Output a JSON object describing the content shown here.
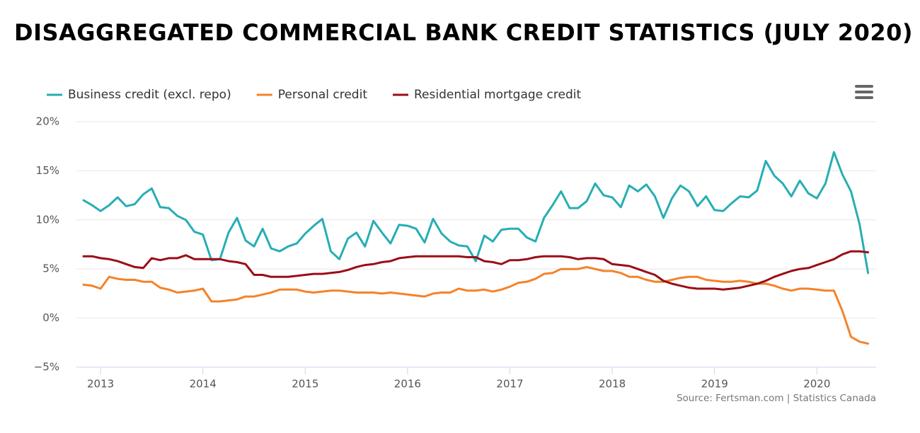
{
  "chart_data": {
    "type": "line",
    "title": "DISAGGREGATED COMMERCIAL BANK CREDIT STATISTICS (JULY 2020)",
    "source": "Source: Fertsman.com | Statistics Canada",
    "categories": [
      null,
      null,
      "2013",
      null,
      null,
      null,
      null,
      null,
      null,
      null,
      null,
      null,
      null,
      null,
      "2014",
      null,
      null,
      null,
      null,
      null,
      null,
      null,
      null,
      null,
      null,
      null,
      "2015",
      null,
      null,
      null,
      null,
      null,
      null,
      null,
      null,
      null,
      null,
      null,
      "2016",
      null,
      null,
      null,
      null,
      null,
      null,
      null,
      null,
      null,
      null,
      null,
      "2017",
      null,
      null,
      null,
      null,
      null,
      null,
      null,
      null,
      null,
      null,
      null,
      "2018",
      null,
      null,
      null,
      null,
      null,
      null,
      null,
      null,
      null,
      null,
      null,
      "2019",
      null,
      null,
      null,
      null,
      null,
      null,
      null,
      null,
      null,
      null,
      null,
      "2020",
      null,
      null,
      null,
      null,
      null,
      null
    ],
    "series": [
      {
        "name": "Business credit (excl. repo)",
        "color": "#26aeb4",
        "values": [
          12.0,
          11.5,
          10.9,
          11.5,
          12.3,
          11.4,
          11.6,
          12.6,
          13.2,
          11.3,
          11.2,
          10.4,
          10.0,
          8.8,
          8.5,
          5.9,
          6.0,
          8.7,
          10.2,
          7.9,
          7.3,
          9.1,
          7.1,
          6.8,
          7.3,
          7.6,
          8.6,
          9.4,
          10.1,
          6.8,
          6.0,
          8.1,
          8.7,
          7.3,
          9.9,
          8.7,
          7.6,
          9.5,
          9.4,
          9.1,
          7.7,
          10.1,
          8.6,
          7.8,
          7.4,
          7.3,
          5.8,
          8.4,
          7.8,
          9.0,
          9.1,
          9.1,
          8.2,
          7.8,
          10.2,
          11.5,
          12.9,
          11.2,
          11.2,
          11.9,
          13.7,
          12.5,
          12.3,
          11.3,
          13.5,
          12.9,
          13.6,
          12.4,
          10.2,
          12.2,
          13.5,
          12.9,
          11.4,
          12.4,
          11.0,
          10.9,
          11.7,
          12.4,
          12.3,
          13.0,
          16.0,
          14.5,
          13.7,
          12.4,
          14.0,
          12.7,
          12.2,
          13.7,
          16.9,
          14.6,
          12.9,
          9.6,
          4.6
        ]
      },
      {
        "name": "Personal credit",
        "color": "#f5822a",
        "values": [
          3.4,
          3.3,
          3.0,
          4.2,
          4.0,
          3.9,
          3.9,
          3.7,
          3.7,
          3.1,
          2.9,
          2.6,
          2.7,
          2.8,
          3.0,
          1.7,
          1.7,
          1.8,
          1.9,
          2.2,
          2.2,
          2.4,
          2.6,
          2.9,
          2.9,
          2.9,
          2.7,
          2.6,
          2.7,
          2.8,
          2.8,
          2.7,
          2.6,
          2.6,
          2.6,
          2.5,
          2.6,
          2.5,
          2.4,
          2.3,
          2.2,
          2.5,
          2.6,
          2.6,
          3.0,
          2.8,
          2.8,
          2.9,
          2.7,
          2.9,
          3.2,
          3.6,
          3.7,
          4.0,
          4.5,
          4.6,
          5.0,
          5.0,
          5.0,
          5.2,
          5.0,
          4.8,
          4.8,
          4.6,
          4.2,
          4.2,
          3.9,
          3.7,
          3.7,
          3.9,
          4.1,
          4.2,
          4.2,
          3.9,
          3.8,
          3.7,
          3.7,
          3.8,
          3.7,
          3.5,
          3.5,
          3.3,
          3.0,
          2.8,
          3.0,
          3.0,
          2.9,
          2.8,
          2.8,
          0.7,
          -1.9,
          -2.4,
          -2.6
        ]
      },
      {
        "name": "Residential mortgage credit",
        "color": "#9b0e16",
        "values": [
          6.3,
          6.3,
          6.1,
          6.0,
          5.8,
          5.5,
          5.2,
          5.1,
          6.1,
          5.9,
          6.1,
          6.1,
          6.4,
          6.0,
          6.0,
          6.0,
          6.0,
          5.8,
          5.7,
          5.5,
          4.4,
          4.4,
          4.2,
          4.2,
          4.2,
          4.3,
          4.4,
          4.5,
          4.5,
          4.6,
          4.7,
          4.9,
          5.2,
          5.4,
          5.5,
          5.7,
          5.8,
          6.1,
          6.2,
          6.3,
          6.3,
          6.3,
          6.3,
          6.3,
          6.3,
          6.2,
          6.2,
          5.8,
          5.7,
          5.5,
          5.9,
          5.9,
          6.0,
          6.2,
          6.3,
          6.3,
          6.3,
          6.2,
          6.0,
          6.1,
          6.1,
          6.0,
          5.5,
          5.4,
          5.3,
          5.0,
          4.7,
          4.4,
          3.8,
          3.5,
          3.3,
          3.1,
          3.0,
          3.0,
          3.0,
          2.9,
          3.0,
          3.1,
          3.3,
          3.5,
          3.8,
          4.2,
          4.5,
          4.8,
          5.0,
          5.1,
          5.4,
          5.7,
          6.0,
          6.5,
          6.8,
          6.8,
          6.7
        ]
      }
    ],
    "ylim": [
      -5,
      20
    ],
    "yticks": [
      {
        "value": -5,
        "label": "−5%"
      },
      {
        "value": 0,
        "label": "0%"
      },
      {
        "value": 5,
        "label": "5%"
      },
      {
        "value": 10,
        "label": "10%"
      },
      {
        "value": 15,
        "label": "15%"
      },
      {
        "value": 20,
        "label": "20%"
      }
    ],
    "grid": true
  }
}
